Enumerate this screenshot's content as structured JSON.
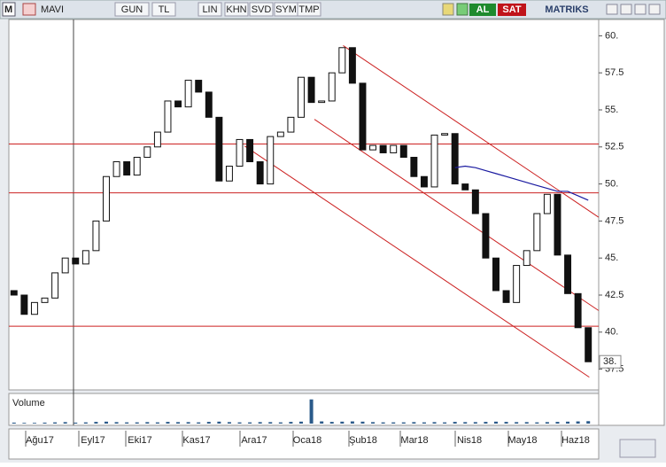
{
  "toolbar": {
    "symbol": "MAVI",
    "buttons": [
      "GUN",
      "TL",
      "LIN",
      "KHN",
      "SVD",
      "SYM",
      "TMP"
    ],
    "buy": "AL",
    "sell": "SAT",
    "brand": "MATRIKS"
  },
  "chart_data": {
    "type": "candlestick",
    "open": [
      42.8,
      42.5,
      41.2,
      42,
      42.3,
      44,
      45,
      44.6,
      45.5,
      47.5,
      50.5,
      51.5,
      50.6,
      51.8,
      52.5,
      53.5,
      55.6,
      55.2,
      57,
      56.2,
      54.5,
      50.2,
      51.2,
      53,
      51.5,
      50,
      53.2,
      53.5,
      54.5,
      57.2,
      55.5,
      55.6,
      57.5,
      59.2,
      56.8,
      52.3,
      52.6,
      52.1,
      52.6,
      51.8,
      50.5,
      49.8,
      53.3,
      53.4,
      50,
      49.6,
      48,
      45,
      42.8,
      42,
      44.5,
      45.5,
      48,
      49.3,
      45.2,
      42.6,
      40.3
    ],
    "close": [
      42.5,
      41.2,
      42,
      42.3,
      44,
      45,
      44.6,
      45.5,
      47.5,
      50.5,
      51.5,
      50.6,
      51.8,
      52.5,
      53.5,
      55.6,
      55.2,
      57,
      56.2,
      54.5,
      50.2,
      51.2,
      53,
      51.5,
      50,
      53.2,
      53.5,
      54.5,
      57.2,
      55.5,
      55.6,
      57.5,
      59.2,
      56.8,
      52.3,
      52.6,
      52.1,
      52.6,
      51.8,
      50.5,
      49.8,
      53.3,
      53.4,
      50,
      49.6,
      48,
      45,
      42.8,
      42,
      44.5,
      45.5,
      48,
      49.3,
      45.2,
      42.6,
      40.3,
      38
    ],
    "moving_average": {
      "color": "#1a1aa0",
      "values": [
        null,
        null,
        null,
        null,
        null,
        null,
        null,
        null,
        null,
        null,
        null,
        null,
        null,
        null,
        null,
        null,
        null,
        null,
        null,
        null,
        null,
        null,
        null,
        null,
        null,
        null,
        null,
        null,
        null,
        null,
        null,
        null,
        null,
        null,
        null,
        null,
        null,
        null,
        null,
        null,
        null,
        null,
        null,
        51.1,
        51.2,
        51.1,
        50.9,
        50.7,
        50.5,
        50.3,
        50.1,
        49.9,
        49.7,
        49.5,
        49.5,
        49.2,
        48.9
      ]
    },
    "hlines": [
      52.7,
      49.4,
      40.4
    ],
    "trendlines": [
      {
        "x": [
          32.1,
          57
        ],
        "y": [
          59.34,
          47.76
        ]
      },
      {
        "x": [
          29.3,
          57
        ],
        "y": [
          54.36,
          41.46
        ]
      },
      {
        "x": [
          22.5,
          56.1
        ],
        "y": [
          52.56,
          36.96
        ]
      }
    ],
    "line_color": "#cc2222",
    "ylim": [
      36.1,
      61.1
    ],
    "yticks": [
      {
        "value": 60,
        "label": "60."
      },
      57.5,
      {
        "value": 55,
        "label": "55."
      },
      52.5,
      {
        "value": 50,
        "label": "50."
      },
      47.5,
      {
        "value": 45,
        "label": "45."
      },
      42.5,
      {
        "value": 40,
        "label": "40."
      },
      37.5
    ],
    "last_price": {
      "value": 38,
      "label": "38."
    },
    "months": [
      "Ağu17",
      "Eyl17",
      "Eki17",
      "Kas17",
      "Ara17",
      "Oca18",
      "Şub18",
      "Mar18",
      "Nis18",
      "May18",
      "Haz18"
    ],
    "volume": {
      "label": "Volume",
      "color": "#2a5a8a",
      "vlim": [
        0,
        110
      ],
      "values": [
        4,
        3,
        3,
        4,
        5,
        6,
        4,
        5,
        7,
        8,
        6,
        5,
        5,
        6,
        5,
        7,
        6,
        6,
        5,
        7,
        8,
        6,
        5,
        5,
        6,
        6,
        5,
        7,
        8,
        100,
        9,
        7,
        8,
        9,
        8,
        6,
        5,
        5,
        5,
        6,
        5,
        6,
        5,
        7,
        6,
        6,
        7,
        8,
        7,
        6,
        6,
        5,
        6,
        7,
        8,
        9,
        10
      ]
    }
  }
}
